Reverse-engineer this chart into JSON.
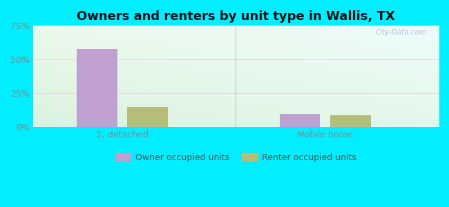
{
  "title": "Owners and renters by unit type in Wallis, TX",
  "categories": [
    "1, detached",
    "Mobile home"
  ],
  "owner_values": [
    58.0,
    10.0
  ],
  "renter_values": [
    15.0,
    9.0
  ],
  "owner_color": "#c0a0d0",
  "renter_color": "#b8bc7a",
  "ylim": [
    0,
    75
  ],
  "yticks": [
    0,
    25,
    50,
    75
  ],
  "ytick_labels": [
    "0%",
    "25%",
    "50%",
    "75%"
  ],
  "bg_outer": "#00eeff",
  "watermark": "City-Data.com",
  "legend_owner": "Owner occupied units",
  "legend_renter": "Renter occupied units",
  "title_fontsize": 13,
  "axis_fontsize": 9,
  "legend_fontsize": 9
}
